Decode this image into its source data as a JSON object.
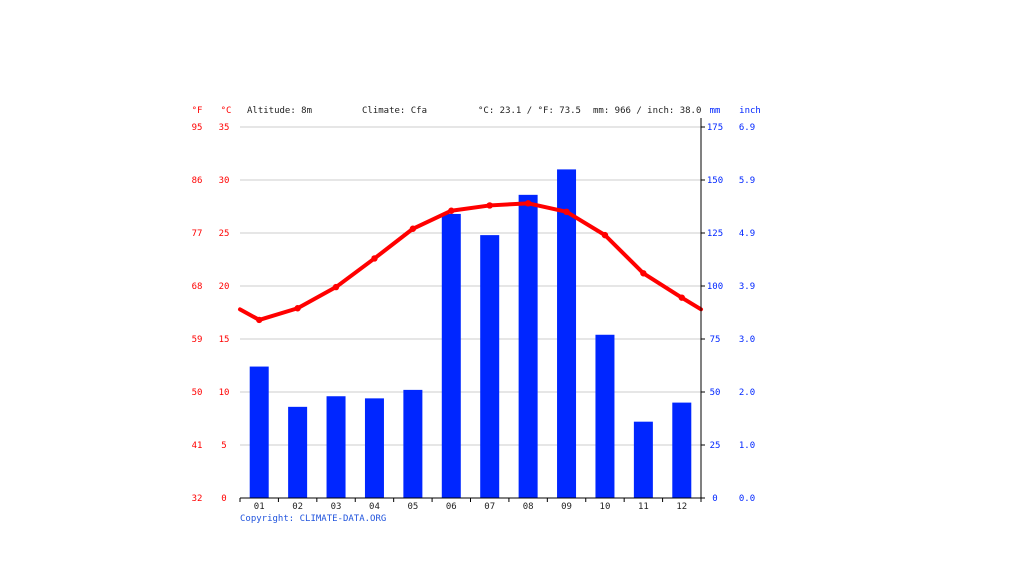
{
  "header": {
    "unit_f": "°F",
    "unit_c": "°C",
    "altitude": "Altitude: 8m",
    "climate": "Climate: Cfa",
    "avg_temp": "°C: 23.1 / °F: 73.5",
    "precip_total": "mm: 966 / inch: 38.0",
    "unit_mm": "mm",
    "unit_inch": "inch"
  },
  "copyright": "Copyright: CLIMATE-DATA.ORG",
  "colors": {
    "temperature": "#ff0000",
    "precipitation": "#0026ff",
    "grid": "#cccccc",
    "axis": "#000000",
    "text": "#333333"
  },
  "chart_data": {
    "type": "bar",
    "categories": [
      "01",
      "02",
      "03",
      "04",
      "05",
      "06",
      "07",
      "08",
      "09",
      "10",
      "11",
      "12"
    ],
    "series": [
      {
        "type": "bar",
        "axis": "right",
        "values": [
          62,
          43,
          48,
          47,
          51,
          134,
          124,
          143,
          155,
          77,
          36,
          45
        ]
      },
      {
        "type": "line",
        "axis": "left",
        "values": [
          16.8,
          17.9,
          19.9,
          22.6,
          25.4,
          27.1,
          27.6,
          27.8,
          27.0,
          24.8,
          21.2,
          18.9
        ]
      }
    ],
    "line_edge_values": [
      17.8,
      17.8
    ],
    "axis_left_c": {
      "ticks": [
        "0",
        "5",
        "10",
        "15",
        "20",
        "25",
        "30",
        "35"
      ],
      "ylim": [
        0,
        35
      ]
    },
    "axis_left_f": {
      "ticks": [
        "32",
        "41",
        "50",
        "59",
        "68",
        "77",
        "86",
        "95"
      ]
    },
    "axis_right_mm": {
      "ticks": [
        "0",
        "25",
        "50",
        "75",
        "100",
        "125",
        "150",
        "175"
      ],
      "ylim": [
        0,
        175
      ]
    },
    "axis_right_inch": {
      "ticks": [
        "0.0",
        "1.0",
        "2.0",
        "3.0",
        "3.9",
        "4.9",
        "5.9",
        "6.9"
      ]
    },
    "grid": true
  }
}
